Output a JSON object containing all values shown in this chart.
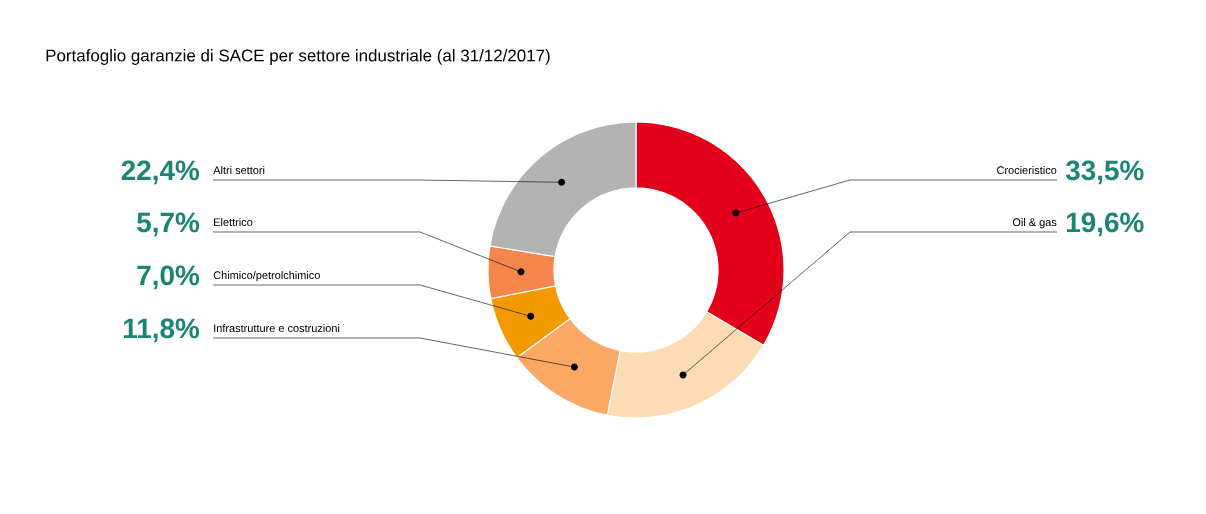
{
  "chart_data": {
    "type": "donut",
    "title": "Portafoglio garanzie di SACE per settore industriale (al 31/12/2017)",
    "categories": [
      "Crocieristico",
      "Oil & gas",
      "Infrastrutture e costruzioni",
      "Chimico/petrolchimico",
      "Elettrico",
      "Altri settori"
    ],
    "values": [
      33.5,
      19.6,
      11.8,
      7.0,
      5.7,
      22.4
    ],
    "colors": [
      "#e3001b",
      "#fddcb5",
      "#fba865",
      "#f39a00",
      "#f5874d",
      "#b3b3b3"
    ],
    "value_labels": [
      "33,5%",
      "19,6%",
      "11,8%",
      "7,0%",
      "5,7%",
      "22,4%"
    ]
  }
}
